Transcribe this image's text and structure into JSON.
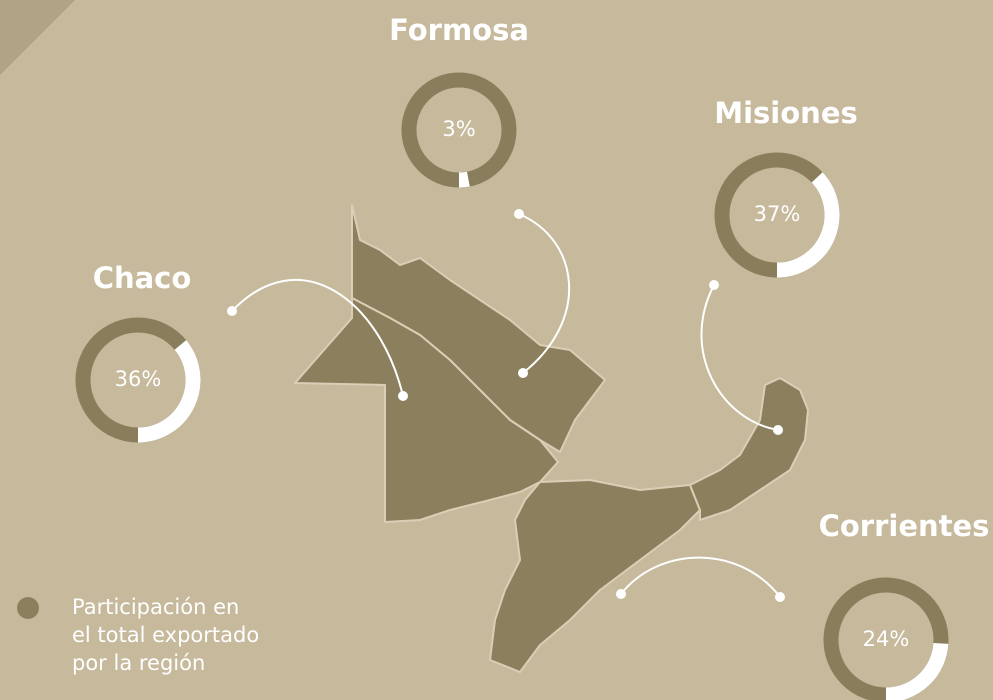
{
  "chart_data": [
    {
      "type": "donut",
      "title": "Formosa",
      "values": [
        3
      ],
      "value_labels": [
        "3%"
      ]
    },
    {
      "type": "donut",
      "title": "Misiones",
      "values": [
        37
      ],
      "value_labels": [
        "37%"
      ]
    },
    {
      "type": "donut",
      "title": "Chaco",
      "values": [
        36
      ],
      "value_labels": [
        "36%"
      ]
    },
    {
      "type": "donut",
      "title": "Corrientes",
      "values": [
        24
      ],
      "value_labels": [
        "24%"
      ]
    }
  ],
  "legend": {
    "lines": [
      "Participación en",
      "el total exportado",
      "por la región"
    ]
  }
}
